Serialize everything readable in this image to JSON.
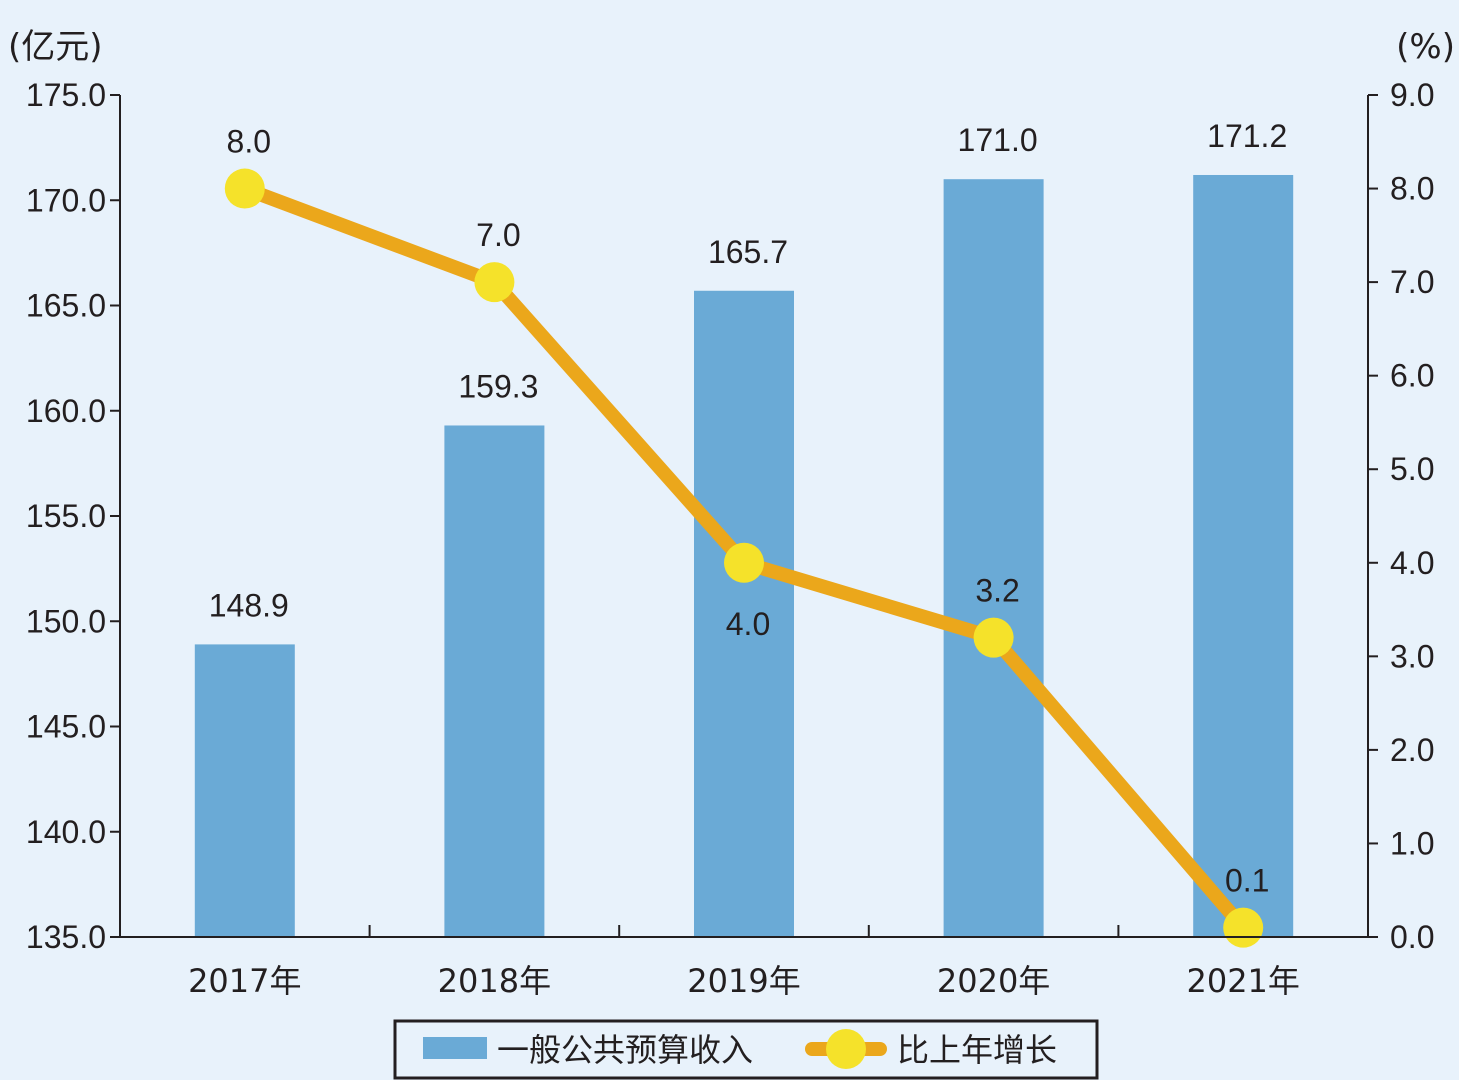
{
  "chart_data": {
    "type": "bar",
    "categories": [
      "2017年",
      "2018年",
      "2019年",
      "2020年",
      "2021年"
    ],
    "series": [
      {
        "name": "一般公共预算收入",
        "type": "bar",
        "axis": "left",
        "values": [
          148.9,
          159.3,
          165.7,
          171.0,
          171.2
        ],
        "labels": [
          "148.9",
          "159.3",
          "165.7",
          "171.0",
          "171.2"
        ],
        "color": "#6aaad6"
      },
      {
        "name": "比上年增长",
        "type": "line",
        "axis": "right",
        "values": [
          8.0,
          7.0,
          4.0,
          3.2,
          0.1
        ],
        "labels": [
          "8.0",
          "7.0",
          "4.0",
          "3.2",
          "0.1"
        ],
        "color": "#eba71b",
        "marker_color": "#f5e22a"
      }
    ],
    "y_left": {
      "unit": "(亿元)",
      "range": [
        135,
        175
      ],
      "ticks": [
        "135.0",
        "140.0",
        "145.0",
        "150.0",
        "155.0",
        "160.0",
        "165.0",
        "170.0",
        "175.0"
      ]
    },
    "y_right": {
      "unit": "(%)",
      "range": [
        0,
        9
      ],
      "ticks": [
        "0.0",
        "1.0",
        "2.0",
        "3.0",
        "4.0",
        "5.0",
        "6.0",
        "7.0",
        "8.0",
        "9.0"
      ]
    },
    "legend": {
      "position": "bottom-center"
    },
    "grid": false
  }
}
